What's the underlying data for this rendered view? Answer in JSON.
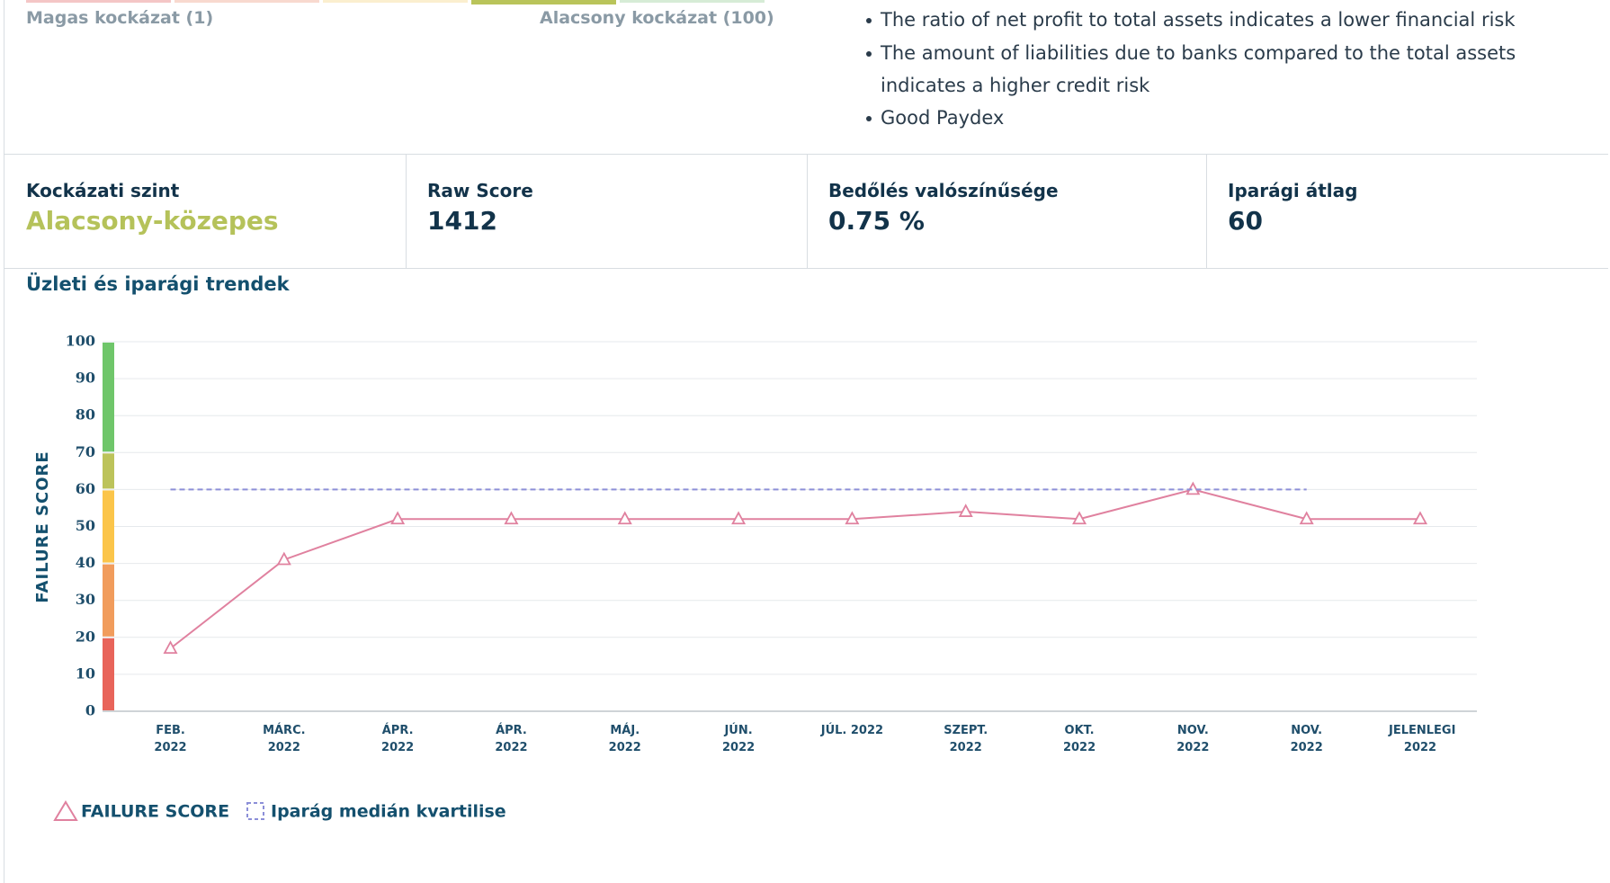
{
  "risk_scale": {
    "high_label": "Magas kockázat (1)",
    "low_label": "Alacsony kockázat (100)",
    "segments": [
      "#f4c6c6",
      "#f8d9cf",
      "#fbefcf",
      "#b9c45a",
      "#d6ecd6"
    ]
  },
  "bullets": [
    "The ratio of net profit to total assets indicates a lower financial risk",
    "The amount of liabilities due to banks compared to the total assets indicates a higher credit risk",
    "Good Paydex"
  ],
  "stats": [
    {
      "label": "Kockázati szint",
      "value": "Alacsony-közepes",
      "color": "#b5c25a"
    },
    {
      "label": "Raw Score",
      "value": 1412,
      "color": "#12334a"
    },
    {
      "label": "Bedőlés valószínűsége",
      "value": "0.75 %",
      "color": "#12334a"
    },
    {
      "label": "Iparági átlag",
      "value": 60,
      "color": "#12334a"
    }
  ],
  "chart_data": {
    "type": "line",
    "title": "Üzleti és iparági trendek",
    "y_label": "FAILURE SCORE",
    "categories": [
      "FEB. 2022",
      "MÁRC. 2022",
      "ÁPR. 2022",
      "ÁPR. 2022",
      "MÁJ. 2022",
      "JÚN. 2022",
      "JÚL. 2022",
      "SZEPT. 2022",
      "OKT. 2022",
      "NOV. 2022",
      "NOV. 2022",
      "JELENLEGI 2022"
    ],
    "series": [
      {
        "name": "FAILURE SCORE",
        "color": "#e0819f",
        "values": [
          17,
          41,
          52,
          52,
          52,
          52,
          52,
          54,
          52,
          60,
          52,
          52
        ]
      },
      {
        "name": "Iparág medián kvartilise",
        "color": "#8c8fd8",
        "dashed": true,
        "values": [
          60,
          60,
          60,
          60,
          60,
          60,
          60,
          60,
          60,
          60,
          60,
          null
        ]
      }
    ],
    "ylim": [
      0,
      100
    ],
    "yticks": [
      0,
      10,
      20,
      30,
      40,
      50,
      60,
      70,
      80,
      90,
      100
    ],
    "grid": true,
    "bands": [
      {
        "from": 0,
        "to": 20,
        "color": "#e8645a"
      },
      {
        "from": 20,
        "to": 40,
        "color": "#f19c5c"
      },
      {
        "from": 40,
        "to": 60,
        "color": "#fbc54a"
      },
      {
        "from": 60,
        "to": 70,
        "color": "#bcc35a"
      },
      {
        "from": 70,
        "to": 100,
        "color": "#6fc66a"
      }
    ]
  }
}
